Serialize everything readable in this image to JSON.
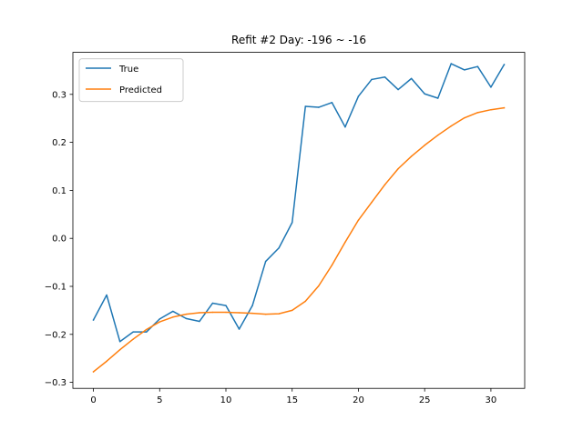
{
  "chart_data": {
    "type": "line",
    "title": "Refit #2 Day: -196 ~ -16",
    "xlabel": "",
    "ylabel": "",
    "xlim": [
      -1.55,
      32.55
    ],
    "ylim": [
      -0.3125,
      0.3875
    ],
    "x_ticks": [
      0,
      5,
      10,
      15,
      20,
      25,
      30
    ],
    "y_ticks": [
      -0.3,
      -0.2,
      -0.1,
      0.0,
      0.1,
      0.2,
      0.3
    ],
    "y_tick_labels": [
      "−0.3",
      "−0.2",
      "−0.1",
      "0.0",
      "0.1",
      "0.2",
      "0.3"
    ],
    "legend": "top-left",
    "grid": false,
    "x": [
      0,
      1,
      2,
      3,
      4,
      5,
      6,
      7,
      8,
      9,
      10,
      11,
      12,
      13,
      14,
      15,
      16,
      17,
      18,
      19,
      20,
      21,
      22,
      23,
      24,
      25,
      26,
      27,
      28,
      29,
      30,
      31
    ],
    "series": [
      {
        "name": "True",
        "color": "#1f77b4",
        "values": [
          -0.17,
          -0.118,
          -0.215,
          -0.195,
          -0.195,
          -0.168,
          -0.152,
          -0.167,
          -0.173,
          -0.135,
          -0.14,
          -0.189,
          -0.14,
          -0.048,
          -0.02,
          0.033,
          0.275,
          0.273,
          0.283,
          0.232,
          0.296,
          0.331,
          0.336,
          0.31,
          0.333,
          0.301,
          0.292,
          0.364,
          0.351,
          0.358,
          0.315,
          0.362
        ]
      },
      {
        "name": "Predicted",
        "color": "#ff7f0e",
        "values": [
          -0.278,
          -0.256,
          -0.232,
          -0.21,
          -0.19,
          -0.174,
          -0.164,
          -0.158,
          -0.155,
          -0.154,
          -0.154,
          -0.155,
          -0.156,
          -0.158,
          -0.157,
          -0.15,
          -0.131,
          -0.099,
          -0.056,
          -0.008,
          0.038,
          0.075,
          0.112,
          0.145,
          0.171,
          0.194,
          0.215,
          0.234,
          0.251,
          0.262,
          0.268,
          0.272
        ]
      }
    ]
  }
}
